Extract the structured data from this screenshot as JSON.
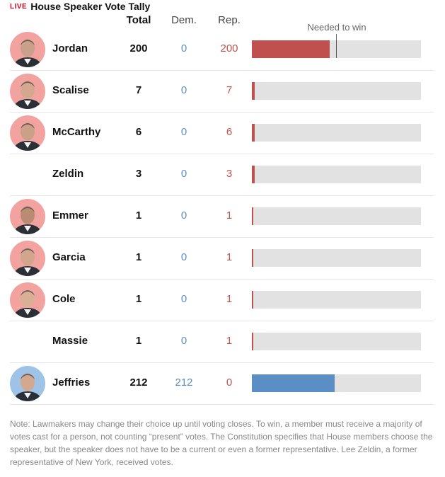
{
  "header": {
    "live_label": "LIVE",
    "title": "House Speaker Vote Tally"
  },
  "columns": {
    "total": "Total",
    "dem": "Dem.",
    "rep": "Rep.",
    "needed": "Needed to win"
  },
  "colors": {
    "rep": "#c0504d",
    "dem": "#5b8ec4",
    "track": "#e2e2e2",
    "live": "#d0021b"
  },
  "chart_data": {
    "type": "bar",
    "title": "House Speaker Vote Tally",
    "threshold_label": "Needed to win",
    "threshold": 217,
    "xlim": [
      0,
      434
    ],
    "categories": [
      "Jordan",
      "Scalise",
      "McCarthy",
      "Zeldin",
      "Emmer",
      "Garcia",
      "Cole",
      "Massie",
      "Jeffries"
    ],
    "rows": [
      {
        "name": "Jordan",
        "total": "200",
        "dem": "0",
        "rep": "200",
        "value": 200,
        "party": "rep",
        "photo": true
      },
      {
        "name": "Scalise",
        "total": "7",
        "dem": "0",
        "rep": "7",
        "value": 7,
        "party": "rep",
        "photo": true
      },
      {
        "name": "McCarthy",
        "total": "6",
        "dem": "0",
        "rep": "6",
        "value": 6,
        "party": "rep",
        "photo": true
      },
      {
        "name": "Zeldin",
        "total": "3",
        "dem": "0",
        "rep": "3",
        "value": 3,
        "party": "rep",
        "photo": false
      },
      {
        "name": "Emmer",
        "total": "1",
        "dem": "0",
        "rep": "1",
        "value": 1,
        "party": "rep",
        "photo": true
      },
      {
        "name": "Garcia",
        "total": "1",
        "dem": "0",
        "rep": "1",
        "value": 1,
        "party": "rep",
        "photo": true
      },
      {
        "name": "Cole",
        "total": "1",
        "dem": "0",
        "rep": "1",
        "value": 1,
        "party": "rep",
        "photo": true
      },
      {
        "name": "Massie",
        "total": "1",
        "dem": "0",
        "rep": "1",
        "value": 1,
        "party": "rep",
        "photo": false
      },
      {
        "name": "Jeffries",
        "total": "212",
        "dem": "212",
        "rep": "0",
        "value": 212,
        "party": "dem",
        "photo": true
      }
    ]
  },
  "note": "Note: Lawmakers may change their choice up until voting closes. To win, a member must receive a majority of votes cast for a person, not counting “present” votes. The Constitution specifies that House members choose the speaker, but the speaker does not have to be a current or even a former representative. Lee Zeldin, a former representative of New York, received votes."
}
